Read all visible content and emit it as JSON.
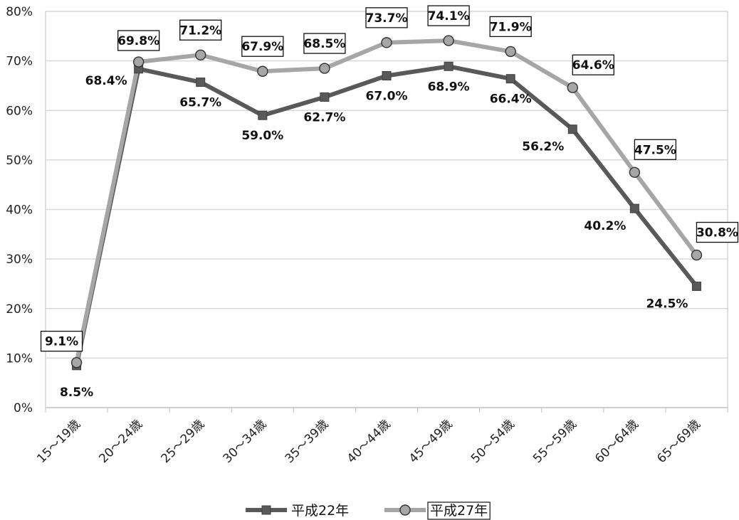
{
  "chart_data": {
    "type": "line",
    "categories": [
      "15～19歳",
      "20～24歳",
      "25～29歳",
      "30～34歳",
      "35～39歳",
      "40～44歳",
      "45～49歳",
      "50～54歳",
      "55～59歳",
      "60～64歳",
      "65～69歳"
    ],
    "ylim": [
      0,
      80
    ],
    "yticks": [
      0,
      10,
      20,
      30,
      40,
      50,
      60,
      70,
      80
    ],
    "ytick_suffix": "%",
    "grid": true,
    "legend_position": "bottom",
    "series": [
      {
        "name": "平成22年",
        "marker": "square",
        "color": "#595959",
        "values": [
          8.5,
          68.4,
          65.7,
          59.0,
          62.7,
          67.0,
          68.9,
          66.4,
          56.2,
          40.2,
          24.5
        ],
        "labels": [
          "8.5%",
          "68.4%",
          "65.7%",
          "59.0%",
          "62.7%",
          "67.0%",
          "68.9%",
          "66.4%",
          "56.2%",
          "40.2%",
          "24.5%"
        ]
      },
      {
        "name": "平成27年",
        "marker": "circle",
        "color": "#a6a6a6",
        "values": [
          9.1,
          69.8,
          71.2,
          67.9,
          68.5,
          73.7,
          74.1,
          71.9,
          64.6,
          47.5,
          30.8
        ],
        "labels": [
          "9.1%",
          "69.8%",
          "71.2%",
          "67.9%",
          "68.5%",
          "73.7%",
          "74.1%",
          "71.9%",
          "64.6%",
          "47.5%",
          "30.8%"
        ]
      }
    ]
  }
}
